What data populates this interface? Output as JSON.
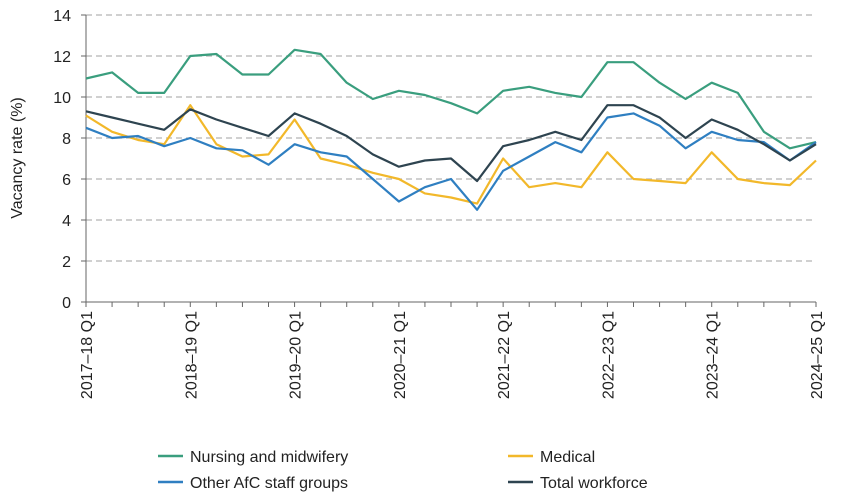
{
  "chart_data": {
    "type": "line",
    "title": "",
    "ylabel": "Vacancy rate (%)",
    "xlabel": "",
    "ylim": [
      0,
      14
    ],
    "yticks": [
      0,
      2,
      4,
      6,
      8,
      10,
      12,
      14
    ],
    "grid": "horizontal dashed",
    "legend_position": "bottom",
    "x_labels": [
      "2017–18 Q1",
      "2018–19 Q1",
      "2019–20 Q1",
      "2020–21 Q1",
      "2021–22 Q1",
      "2022–23 Q1",
      "2023–24 Q1",
      "2024–25 Q1"
    ],
    "x_label_positions": [
      0,
      4,
      8,
      12,
      16,
      20,
      24,
      28
    ],
    "series": [
      {
        "name": "Nursing and midwifery",
        "color": "#3a9e7e",
        "values": [
          10.9,
          11.2,
          10.2,
          10.2,
          12.0,
          12.1,
          11.1,
          11.1,
          12.3,
          12.1,
          10.7,
          9.9,
          10.3,
          10.1,
          9.7,
          9.2,
          10.3,
          10.5,
          10.2,
          10.0,
          11.7,
          11.7,
          10.7,
          9.9,
          10.7,
          10.2,
          8.3,
          7.5,
          7.8
        ]
      },
      {
        "name": "Medical",
        "color": "#f2b82a",
        "values": [
          9.1,
          8.3,
          7.9,
          7.7,
          9.6,
          7.7,
          7.1,
          7.2,
          8.9,
          7.0,
          6.7,
          6.3,
          6.0,
          5.3,
          5.1,
          4.8,
          7.0,
          5.6,
          5.8,
          5.6,
          7.3,
          6.0,
          5.9,
          5.8,
          7.3,
          6.0,
          5.8,
          5.7,
          6.9
        ]
      },
      {
        "name": "Other AfC staff groups",
        "color": "#2f7fc1",
        "values": [
          8.5,
          8.0,
          8.1,
          7.6,
          8.0,
          7.5,
          7.4,
          6.7,
          7.7,
          7.3,
          7.1,
          6.0,
          4.9,
          5.6,
          6.0,
          4.5,
          6.4,
          7.1,
          7.8,
          7.3,
          9.0,
          9.2,
          8.6,
          7.5,
          8.3,
          7.9,
          7.8,
          6.9,
          7.8
        ]
      },
      {
        "name": "Total workforce",
        "color": "#2e4450",
        "values": [
          9.3,
          9.0,
          8.7,
          8.4,
          9.4,
          8.9,
          8.5,
          8.1,
          9.2,
          8.7,
          8.1,
          7.2,
          6.6,
          6.9,
          7.0,
          5.9,
          7.6,
          7.9,
          8.3,
          7.9,
          9.6,
          9.6,
          9.0,
          8.0,
          8.9,
          8.4,
          7.7,
          6.9,
          7.7
        ]
      }
    ],
    "legend": [
      {
        "series": 0
      },
      {
        "series": 1
      },
      {
        "series": 2
      },
      {
        "series": 3
      }
    ]
  }
}
